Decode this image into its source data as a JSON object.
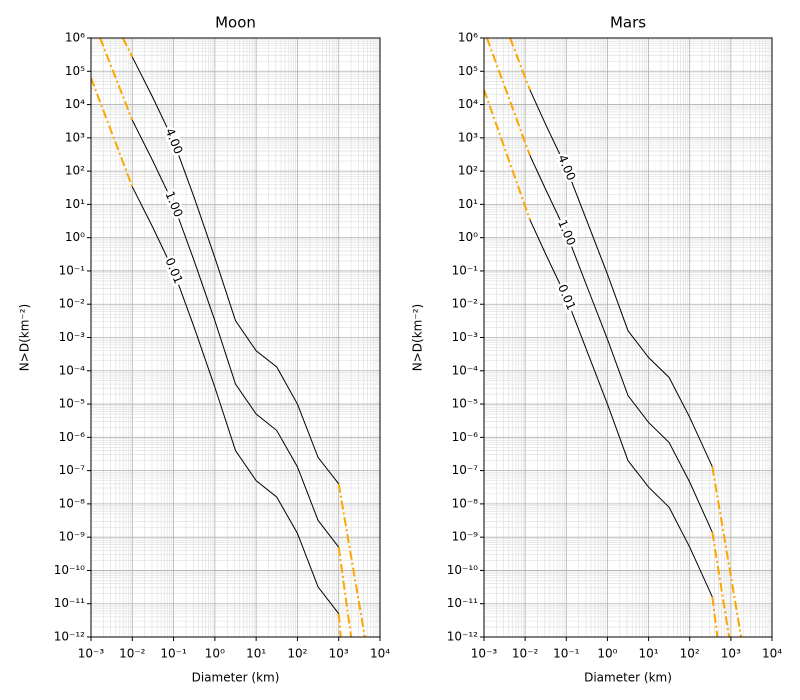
{
  "chart_data": [
    {
      "type": "line",
      "title": "Moon",
      "x_label": "Diameter (km)",
      "y_label": "N>D(km⁻²)",
      "xscale": "log",
      "yscale": "log",
      "grid": true,
      "minor_grid": true,
      "xlim": [
        0.001,
        10000
      ],
      "ylim": [
        1e-12,
        1000000
      ],
      "xticks": [
        {
          "value": 0.001,
          "label": "10⁻³"
        },
        {
          "value": 0.01,
          "label": "10⁻²"
        },
        {
          "value": 0.1,
          "label": "10⁻¹"
        },
        {
          "value": 1,
          "label": "10⁰"
        },
        {
          "value": 10,
          "label": "10¹"
        },
        {
          "value": 100,
          "label": "10²"
        },
        {
          "value": 1000,
          "label": "10³"
        },
        {
          "value": 10000,
          "label": "10⁴"
        }
      ],
      "yticks": [
        {
          "value": 1000000,
          "label": "10⁶"
        },
        {
          "value": 100000,
          "label": "10⁵"
        },
        {
          "value": 10000,
          "label": "10⁴"
        },
        {
          "value": 1000,
          "label": "10³"
        },
        {
          "value": 100,
          "label": "10²"
        },
        {
          "value": 10,
          "label": "10¹"
        },
        {
          "value": 1,
          "label": "10⁰"
        },
        {
          "value": 0.1,
          "label": "10⁻¹"
        },
        {
          "value": 0.01,
          "label": "10⁻²"
        },
        {
          "value": 0.001,
          "label": "10⁻³"
        },
        {
          "value": 0.0001,
          "label": "10⁻⁴"
        },
        {
          "value": 1e-05,
          "label": "10⁻⁵"
        },
        {
          "value": 1e-06,
          "label": "10⁻⁶"
        },
        {
          "value": 1e-07,
          "label": "10⁻⁷"
        },
        {
          "value": 1e-08,
          "label": "10⁻⁸"
        },
        {
          "value": 1e-09,
          "label": "10⁻⁹"
        },
        {
          "value": 1e-10,
          "label": "10⁻¹⁰"
        },
        {
          "value": 1e-11,
          "label": "10⁻¹¹"
        },
        {
          "value": 1e-12,
          "label": "10⁻¹²"
        }
      ],
      "series": [
        {
          "label": "4.00",
          "color": "#000000",
          "style": "solid",
          "x": [
            0.01,
            0.0316,
            0.1,
            0.316,
            1,
            3.16,
            10,
            31.6,
            100,
            316,
            1000
          ],
          "values": [
            270000,
            16000,
            790,
            16,
            0.25,
            0.0032,
            0.0004,
            0.00013,
            1e-05,
            2.5e-07,
            4e-08
          ]
        },
        {
          "label": "1.00",
          "color": "#000000",
          "style": "solid",
          "x": [
            0.01,
            0.0316,
            0.1,
            0.316,
            1,
            3.16,
            10,
            31.6,
            100,
            316,
            1000
          ],
          "values": [
            3400,
            200,
            10,
            0.2,
            0.0032,
            4e-05,
            5e-06,
            1.6e-06,
            1.3e-07,
            3.2e-09,
            5e-10
          ]
        },
        {
          "label": "0.01",
          "color": "#000000",
          "style": "solid",
          "x": [
            0.01,
            0.0316,
            0.1,
            0.316,
            1,
            3.16,
            10,
            31.6,
            100,
            316,
            1000
          ],
          "values": [
            34,
            2,
            0.1,
            0.002,
            3.2e-05,
            4e-07,
            5e-08,
            1.6e-08,
            1.3e-09,
            3.2e-11,
            5e-12
          ]
        },
        {
          "color": "#ffa500",
          "style": "dashdot",
          "x": [
            0.0059,
            0.01
          ],
          "values": [
            1000000,
            270000
          ]
        },
        {
          "color": "#ffa500",
          "style": "dashdot",
          "x": [
            0.00166,
            0.01
          ],
          "values": [
            1000000,
            3400
          ]
        },
        {
          "color": "#ffa500",
          "style": "dashdot",
          "x": [
            0.001,
            0.01
          ],
          "values": [
            63000,
            34
          ]
        },
        {
          "color": "#ffa500",
          "style": "dashdot",
          "x": [
            1000,
            4300
          ],
          "values": [
            4e-08,
            1e-12
          ]
        },
        {
          "color": "#ffa500",
          "style": "dashdot",
          "x": [
            1000,
            2000
          ],
          "values": [
            5e-10,
            1e-12
          ]
        },
        {
          "color": "#ffa500",
          "style": "dashdot",
          "x": [
            1000,
            1120
          ],
          "values": [
            5e-12,
            1e-12
          ]
        }
      ]
    },
    {
      "type": "line",
      "title": "Mars",
      "x_label": "Diameter (km)",
      "y_label": "N>D(km⁻²)",
      "xscale": "log",
      "yscale": "log",
      "grid": true,
      "minor_grid": true,
      "xlim": [
        0.001,
        10000
      ],
      "ylim": [
        1e-12,
        1000000
      ],
      "xticks": [
        {
          "value": 0.001,
          "label": "10⁻³"
        },
        {
          "value": 0.01,
          "label": "10⁻²"
        },
        {
          "value": 0.1,
          "label": "10⁻¹"
        },
        {
          "value": 1,
          "label": "10⁰"
        },
        {
          "value": 10,
          "label": "10¹"
        },
        {
          "value": 100,
          "label": "10²"
        },
        {
          "value": 1000,
          "label": "10³"
        },
        {
          "value": 10000,
          "label": "10⁴"
        }
      ],
      "yticks": [
        {
          "value": 1000000,
          "label": "10⁶"
        },
        {
          "value": 100000,
          "label": "10⁵"
        },
        {
          "value": 10000,
          "label": "10⁴"
        },
        {
          "value": 1000,
          "label": "10³"
        },
        {
          "value": 100,
          "label": "10²"
        },
        {
          "value": 10,
          "label": "10¹"
        },
        {
          "value": 1,
          "label": "10⁰"
        },
        {
          "value": 0.1,
          "label": "10⁻¹"
        },
        {
          "value": 0.01,
          "label": "10⁻²"
        },
        {
          "value": 0.001,
          "label": "10⁻³"
        },
        {
          "value": 0.0001,
          "label": "10⁻⁴"
        },
        {
          "value": 1e-05,
          "label": "10⁻⁵"
        },
        {
          "value": 1e-06,
          "label": "10⁻⁶"
        },
        {
          "value": 1e-07,
          "label": "10⁻⁷"
        },
        {
          "value": 1e-08,
          "label": "10⁻⁸"
        },
        {
          "value": 1e-09,
          "label": "10⁻⁹"
        },
        {
          "value": 1e-10,
          "label": "10⁻¹⁰"
        },
        {
          "value": 1e-11,
          "label": "10⁻¹¹"
        },
        {
          "value": 1e-12,
          "label": "10⁻¹²"
        }
      ],
      "series": [
        {
          "label": "4.00",
          "color": "#000000",
          "style": "solid",
          "x": [
            0.013,
            0.0316,
            0.1,
            0.316,
            1,
            3.16,
            10,
            31.6,
            100,
            355
          ],
          "values": [
            28000,
            2500,
            126,
            3.2,
            0.08,
            0.0016,
            0.00025,
            6.3e-05,
            4e-06,
            1.3e-07
          ]
        },
        {
          "label": "1.00",
          "color": "#000000",
          "style": "solid",
          "x": [
            0.013,
            0.0316,
            0.1,
            0.316,
            1,
            3.16,
            10,
            31.6,
            100,
            355
          ],
          "values": [
            300,
            28,
            1.4,
            0.035,
            0.00089,
            1.8e-05,
            2.8e-06,
            7e-07,
            4.5e-08,
            1.4e-09
          ]
        },
        {
          "label": "0.01",
          "color": "#000000",
          "style": "solid",
          "x": [
            0.013,
            0.0316,
            0.1,
            0.316,
            1,
            3.16,
            10,
            31.6,
            100,
            355
          ],
          "values": [
            3.5,
            0.32,
            0.016,
            0.0004,
            1e-05,
            2e-07,
            3.2e-08,
            7.9e-09,
            5e-10,
            1.6e-11
          ]
        },
        {
          "color": "#ffa500",
          "style": "dashdot",
          "x": [
            0.0043,
            0.013
          ],
          "values": [
            1000000,
            28000
          ]
        },
        {
          "color": "#ffa500",
          "style": "dashdot",
          "x": [
            0.00118,
            0.013
          ],
          "values": [
            1000000,
            300
          ]
        },
        {
          "color": "#ffa500",
          "style": "dashdot",
          "x": [
            0.001,
            0.013
          ],
          "values": [
            28000,
            3.5
          ]
        },
        {
          "color": "#ffa500",
          "style": "dashdot",
          "x": [
            355,
            1780
          ],
          "values": [
            1.3e-07,
            1e-12
          ]
        },
        {
          "color": "#ffa500",
          "style": "dashdot",
          "x": [
            355,
            910
          ],
          "values": [
            1.4e-09,
            1e-12
          ]
        },
        {
          "color": "#ffa500",
          "style": "dashdot",
          "x": [
            355,
            470
          ],
          "values": [
            1.6e-11,
            1e-12
          ]
        }
      ]
    }
  ]
}
